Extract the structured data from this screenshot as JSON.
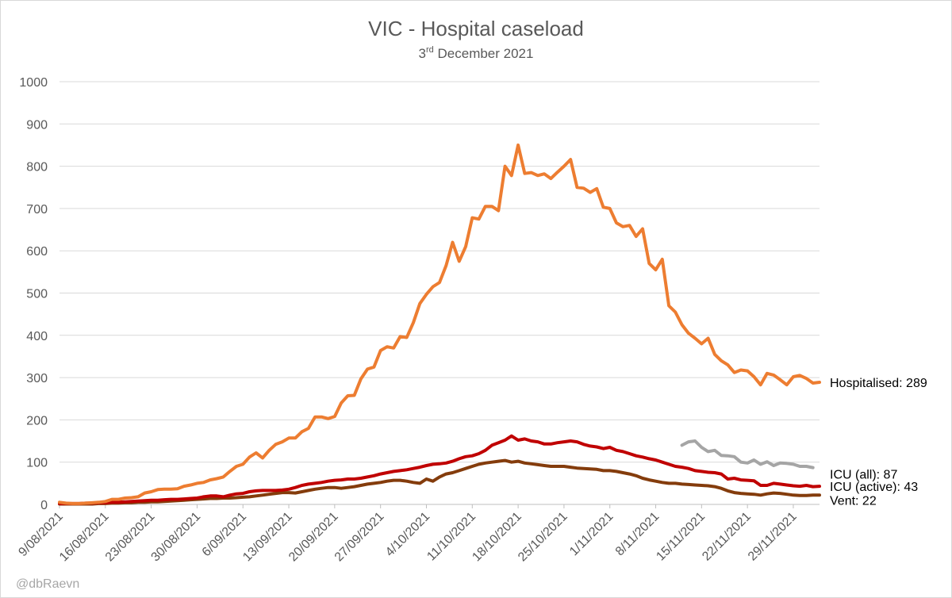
{
  "chart_data": {
    "type": "line",
    "title": "VIC - Hospital caseload",
    "subtitle": {
      "day": "3",
      "suffix": "rd",
      "rest": " December 2021"
    },
    "xlabel": "",
    "ylabel": "",
    "ylim": [
      0,
      1000
    ],
    "yticks": [
      "0",
      "100",
      "200",
      "300",
      "400",
      "500",
      "600",
      "700",
      "800",
      "900",
      "1000"
    ],
    "x_range_days": [
      0,
      116
    ],
    "xticks": [
      {
        "label": "9/08/2021",
        "day": 0
      },
      {
        "label": "16/08/2021",
        "day": 7
      },
      {
        "label": "23/08/2021",
        "day": 14
      },
      {
        "label": "30/08/2021",
        "day": 21
      },
      {
        "label": "6/09/2021",
        "day": 28
      },
      {
        "label": "13/09/2021",
        "day": 35
      },
      {
        "label": "20/09/2021",
        "day": 42
      },
      {
        "label": "27/09/2021",
        "day": 49
      },
      {
        "label": "4/10/2021",
        "day": 56
      },
      {
        "label": "11/10/2021",
        "day": 63
      },
      {
        "label": "18/10/2021",
        "day": 70
      },
      {
        "label": "25/10/2021",
        "day": 77
      },
      {
        "label": "1/11/2021",
        "day": 84
      },
      {
        "label": "8/11/2021",
        "day": 91
      },
      {
        "label": "15/11/2021",
        "day": 98
      },
      {
        "label": "22/11/2021",
        "day": 105
      },
      {
        "label": "29/11/2021",
        "day": 112
      }
    ],
    "grid": true,
    "series": [
      {
        "name": "Hospitalised",
        "end_label": "Hospitalised: 289",
        "color": "#ED7D31",
        "start_day": 0,
        "values": [
          5,
          3,
          2,
          2,
          3,
          4,
          5,
          7,
          12,
          12,
          15,
          16,
          18,
          27,
          30,
          35,
          36,
          36,
          37,
          43,
          46,
          50,
          52,
          58,
          61,
          65,
          78,
          90,
          95,
          112,
          122,
          110,
          128,
          142,
          148,
          157,
          157,
          172,
          180,
          207,
          207,
          203,
          208,
          240,
          257,
          258,
          297,
          320,
          325,
          364,
          373,
          370,
          397,
          395,
          430,
          475,
          497,
          515,
          525,
          565,
          620,
          575,
          610,
          678,
          675,
          705,
          705,
          695,
          800,
          778,
          850,
          783,
          785,
          778,
          782,
          771,
          786,
          800,
          816,
          750,
          748,
          738,
          747,
          703,
          700,
          666,
          657,
          660,
          634,
          652,
          570,
          555,
          580,
          470,
          455,
          425,
          405,
          393,
          380,
          393,
          355,
          340,
          330,
          312,
          318,
          316,
          302,
          283,
          310,
          306,
          295,
          283,
          302,
          305,
          298,
          287,
          289
        ]
      },
      {
        "name": "ICU (all)",
        "end_label": "ICU (all): 87",
        "color": "#A5A5A5",
        "start_day": 95,
        "values": [
          140,
          148,
          150,
          135,
          125,
          128,
          116,
          115,
          113,
          100,
          98,
          105,
          95,
          101,
          92,
          98,
          97,
          95,
          90,
          90,
          87
        ]
      },
      {
        "name": "ICU (active)",
        "end_label": "ICU (active): 43",
        "color": "#C00000",
        "start_day": 0,
        "values": [
          2,
          2,
          2,
          2,
          3,
          3,
          4,
          4,
          5,
          5,
          6,
          7,
          8,
          9,
          10,
          10,
          11,
          12,
          12,
          13,
          14,
          15,
          18,
          20,
          20,
          18,
          22,
          25,
          26,
          30,
          32,
          33,
          33,
          33,
          34,
          36,
          40,
          45,
          48,
          50,
          52,
          55,
          57,
          58,
          60,
          60,
          62,
          65,
          68,
          72,
          75,
          78,
          80,
          82,
          85,
          88,
          92,
          95,
          96,
          98,
          102,
          108,
          113,
          115,
          120,
          128,
          140,
          146,
          152,
          162,
          152,
          155,
          150,
          148,
          143,
          143,
          146,
          148,
          150,
          148,
          142,
          138,
          136,
          132,
          135,
          128,
          125,
          120,
          115,
          112,
          108,
          105,
          100,
          95,
          90,
          88,
          85,
          80,
          78,
          76,
          75,
          72,
          60,
          62,
          58,
          57,
          56,
          45,
          45,
          50,
          48,
          46,
          44,
          43,
          45,
          42,
          43
        ]
      },
      {
        "name": "Vent",
        "end_label": "Vent: 22",
        "color": "#843C0C",
        "start_day": 0,
        "values": [
          1,
          1,
          1,
          1,
          1,
          1,
          2,
          2,
          3,
          3,
          4,
          4,
          5,
          5,
          6,
          6,
          7,
          8,
          9,
          10,
          11,
          12,
          13,
          14,
          14,
          15,
          15,
          16,
          17,
          18,
          20,
          22,
          24,
          26,
          28,
          28,
          27,
          30,
          33,
          36,
          38,
          40,
          40,
          38,
          40,
          42,
          45,
          48,
          50,
          52,
          55,
          57,
          57,
          55,
          52,
          50,
          60,
          55,
          65,
          72,
          75,
          80,
          85,
          90,
          95,
          98,
          100,
          102,
          104,
          100,
          102,
          98,
          96,
          94,
          92,
          90,
          90,
          90,
          88,
          86,
          85,
          84,
          83,
          80,
          80,
          78,
          75,
          72,
          68,
          62,
          58,
          55,
          52,
          50,
          50,
          48,
          47,
          46,
          45,
          44,
          42,
          38,
          32,
          28,
          26,
          25,
          24,
          22,
          25,
          27,
          26,
          24,
          22,
          21,
          21,
          22,
          22
        ]
      }
    ]
  },
  "credit": "@dbRaevn"
}
